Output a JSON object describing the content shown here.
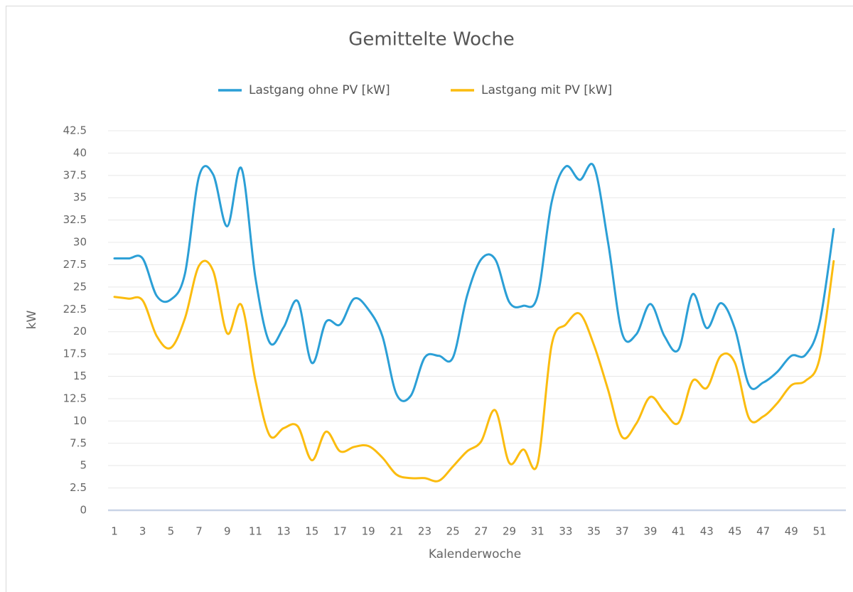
{
  "chart_data": {
    "type": "line",
    "title": "Gemittelte Woche",
    "x_label": "Kalenderwoche",
    "y_label": "kW",
    "categories": [
      1,
      null,
      3,
      null,
      5,
      null,
      7,
      null,
      9,
      null,
      11,
      null,
      13,
      null,
      15,
      null,
      17,
      null,
      19,
      null,
      21,
      null,
      23,
      null,
      25,
      null,
      27,
      null,
      29,
      null,
      31,
      null,
      33,
      null,
      35,
      null,
      37,
      null,
      39,
      null,
      41,
      null,
      43,
      null,
      45,
      null,
      47,
      null,
      49,
      null,
      51,
      null
    ],
    "series": [
      {
        "name": "Lastgang ohne PV [kW]",
        "color": "#2b9fd6",
        "values": [
          28.2,
          28.2,
          28.2,
          24,
          23.6,
          26.5,
          37.4,
          37.6,
          31.8,
          38.3,
          26,
          18.8,
          20.5,
          23.4,
          16.5,
          21.1,
          20.8,
          23.7,
          22.5,
          19.5,
          13,
          12.8,
          17.1,
          17.3,
          17.1,
          24,
          28.1,
          28.1,
          23.3,
          22.9,
          24,
          34.5,
          38.5,
          37,
          38.5,
          30,
          19.8,
          19.7,
          23.1,
          19.5,
          18,
          24.2,
          20.4,
          23.2,
          20.3,
          14,
          14.3,
          15.5,
          17.3,
          17.4,
          21,
          31.5
        ]
      },
      {
        "name": "Lastgang mit PV [kW]",
        "color": "#fbbc0f",
        "values": [
          23.9,
          23.7,
          23.5,
          19.5,
          18.2,
          21.5,
          27.4,
          26.8,
          19.8,
          23,
          14.5,
          8.4,
          9.2,
          9.4,
          5.6,
          8.8,
          6.6,
          7.1,
          7.2,
          5.9,
          4,
          3.6,
          3.6,
          3.3,
          4.9,
          6.6,
          7.7,
          11.2,
          5.3,
          6.8,
          5.2,
          18.5,
          20.8,
          22,
          18.5,
          13.5,
          8.2,
          9.7,
          12.7,
          11,
          9.8,
          14.5,
          13.7,
          17.3,
          16.5,
          10.3,
          10.5,
          12,
          14,
          14.5,
          17,
          27.9
        ]
      }
    ],
    "ylim": [
      0,
      42.5
    ],
    "yticks": [
      0,
      2.5,
      5,
      7.5,
      10,
      12.5,
      15,
      17.5,
      20,
      22.5,
      25,
      27.5,
      30,
      32.5,
      35,
      37.5,
      40,
      42.5
    ],
    "grid": true,
    "legend": "top"
  }
}
